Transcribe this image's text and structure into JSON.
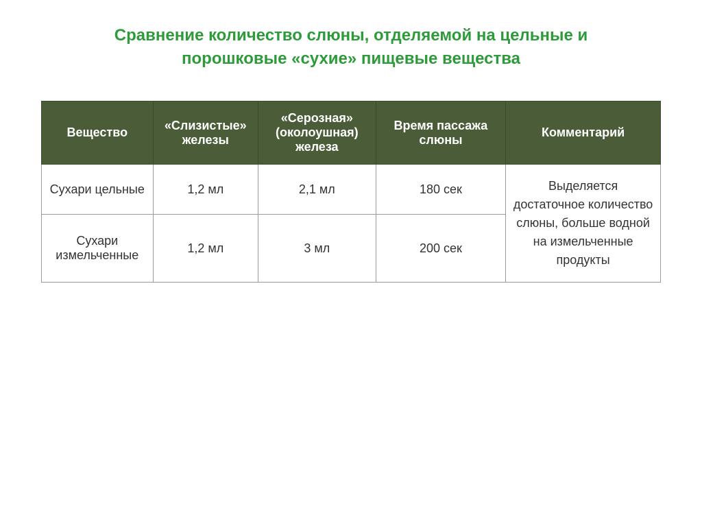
{
  "title": "Сравнение количество слюны, отделяемой на цельные и порошковые «сухие» пищевые вещества",
  "table": {
    "columns": [
      "Вещество",
      "«Слизистые» железы",
      "«Серозная» (околоушная) железа",
      "Время пассажа слюны",
      "Комментарий"
    ],
    "rows": [
      {
        "substance": "Сухари цельные",
        "mucous": "1,2 мл",
        "serous": "2,1 мл",
        "time": "180 сек"
      },
      {
        "substance": "Сухари измельченные",
        "mucous": "1,2 мл",
        "serous": "3 мл",
        "time": "200 сек"
      }
    ],
    "comment": "Выделяется достаточное количество слюны, больше водной на измельченные продукты"
  },
  "colors": {
    "title_color": "#2e9b3a",
    "header_bg": "#4b5d38",
    "header_text": "#ffffff",
    "cell_bg": "#ffffff",
    "cell_text": "#333333",
    "border_color": "#999999"
  },
  "typography": {
    "title_fontsize": 24,
    "header_fontsize": 18,
    "cell_fontsize": 18
  }
}
